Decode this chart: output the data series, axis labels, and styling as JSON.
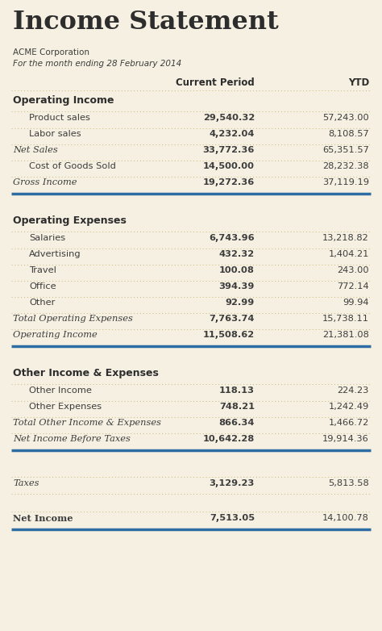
{
  "title": "Income Statement",
  "subtitle1": "ACME Corporation",
  "subtitle2": "For the month ending 28 February 2014",
  "col_headers": [
    "Current Period",
    "YTD"
  ],
  "bg_color": "#f5f0e1",
  "title_color": "#2d2d2d",
  "header_color": "#2d2d2d",
  "label_color": "#3d3d3d",
  "value_color": "#3d3d3d",
  "divider_color": "#c8b878",
  "thick_line_color": "#2e6da4",
  "sections": [
    {
      "header": "Operating Income",
      "rows": [
        {
          "label": "Product sales",
          "cp": "29,540.32",
          "ytd": "57,243.00",
          "style": "normal",
          "indent": true
        },
        {
          "label": "Labor sales",
          "cp": "4,232.04",
          "ytd": "8,108.57",
          "style": "normal",
          "indent": true
        },
        {
          "label": "Net Sales",
          "cp": "33,772.36",
          "ytd": "65,351.57",
          "style": "italic",
          "indent": false
        },
        {
          "label": "Cost of Goods Sold",
          "cp": "14,500.00",
          "ytd": "28,232.38",
          "style": "normal",
          "indent": true
        },
        {
          "label": "Gross Income",
          "cp": "19,272.36",
          "ytd": "37,119.19",
          "style": "italic",
          "indent": false
        }
      ],
      "end_thick_line": true
    },
    {
      "header": "Operating Expenses",
      "rows": [
        {
          "label": "Salaries",
          "cp": "6,743.96",
          "ytd": "13,218.82",
          "style": "normal",
          "indent": true
        },
        {
          "label": "Advertising",
          "cp": "432.32",
          "ytd": "1,404.21",
          "style": "normal",
          "indent": true
        },
        {
          "label": "Travel",
          "cp": "100.08",
          "ytd": "243.00",
          "style": "normal",
          "indent": true
        },
        {
          "label": "Office",
          "cp": "394.39",
          "ytd": "772.14",
          "style": "normal",
          "indent": true
        },
        {
          "label": "Other",
          "cp": "92.99",
          "ytd": "99.94",
          "style": "normal",
          "indent": true
        },
        {
          "label": "Total Operating Expenses",
          "cp": "7,763.74",
          "ytd": "15,738.11",
          "style": "italic",
          "indent": false
        },
        {
          "label": "Operating Income",
          "cp": "11,508.62",
          "ytd": "21,381.08",
          "style": "italic",
          "indent": false
        }
      ],
      "end_thick_line": true
    },
    {
      "header": "Other Income & Expenses",
      "rows": [
        {
          "label": "Other Income",
          "cp": "118.13",
          "ytd": "224.23",
          "style": "normal",
          "indent": true
        },
        {
          "label": "Other Expenses",
          "cp": "748.21",
          "ytd": "1,242.49",
          "style": "normal",
          "indent": true
        },
        {
          "label": "Total Other Income & Expenses",
          "cp": "866.34",
          "ytd": "1,466.72",
          "style": "italic",
          "indent": false
        },
        {
          "label": "Net Income Before Taxes",
          "cp": "10,642.28",
          "ytd": "19,914.36",
          "style": "italic",
          "indent": false
        }
      ],
      "end_thick_line": true
    },
    {
      "header": null,
      "rows": [
        {
          "label": "Taxes",
          "cp": "3,129.23",
          "ytd": "5,813.58",
          "style": "italic",
          "indent": false
        }
      ],
      "end_thick_line": false
    },
    {
      "header": null,
      "rows": [
        {
          "label": "Net Income",
          "cp": "7,513.05",
          "ytd": "14,100.78",
          "style": "bold",
          "indent": false
        }
      ],
      "end_thick_line": true
    }
  ]
}
